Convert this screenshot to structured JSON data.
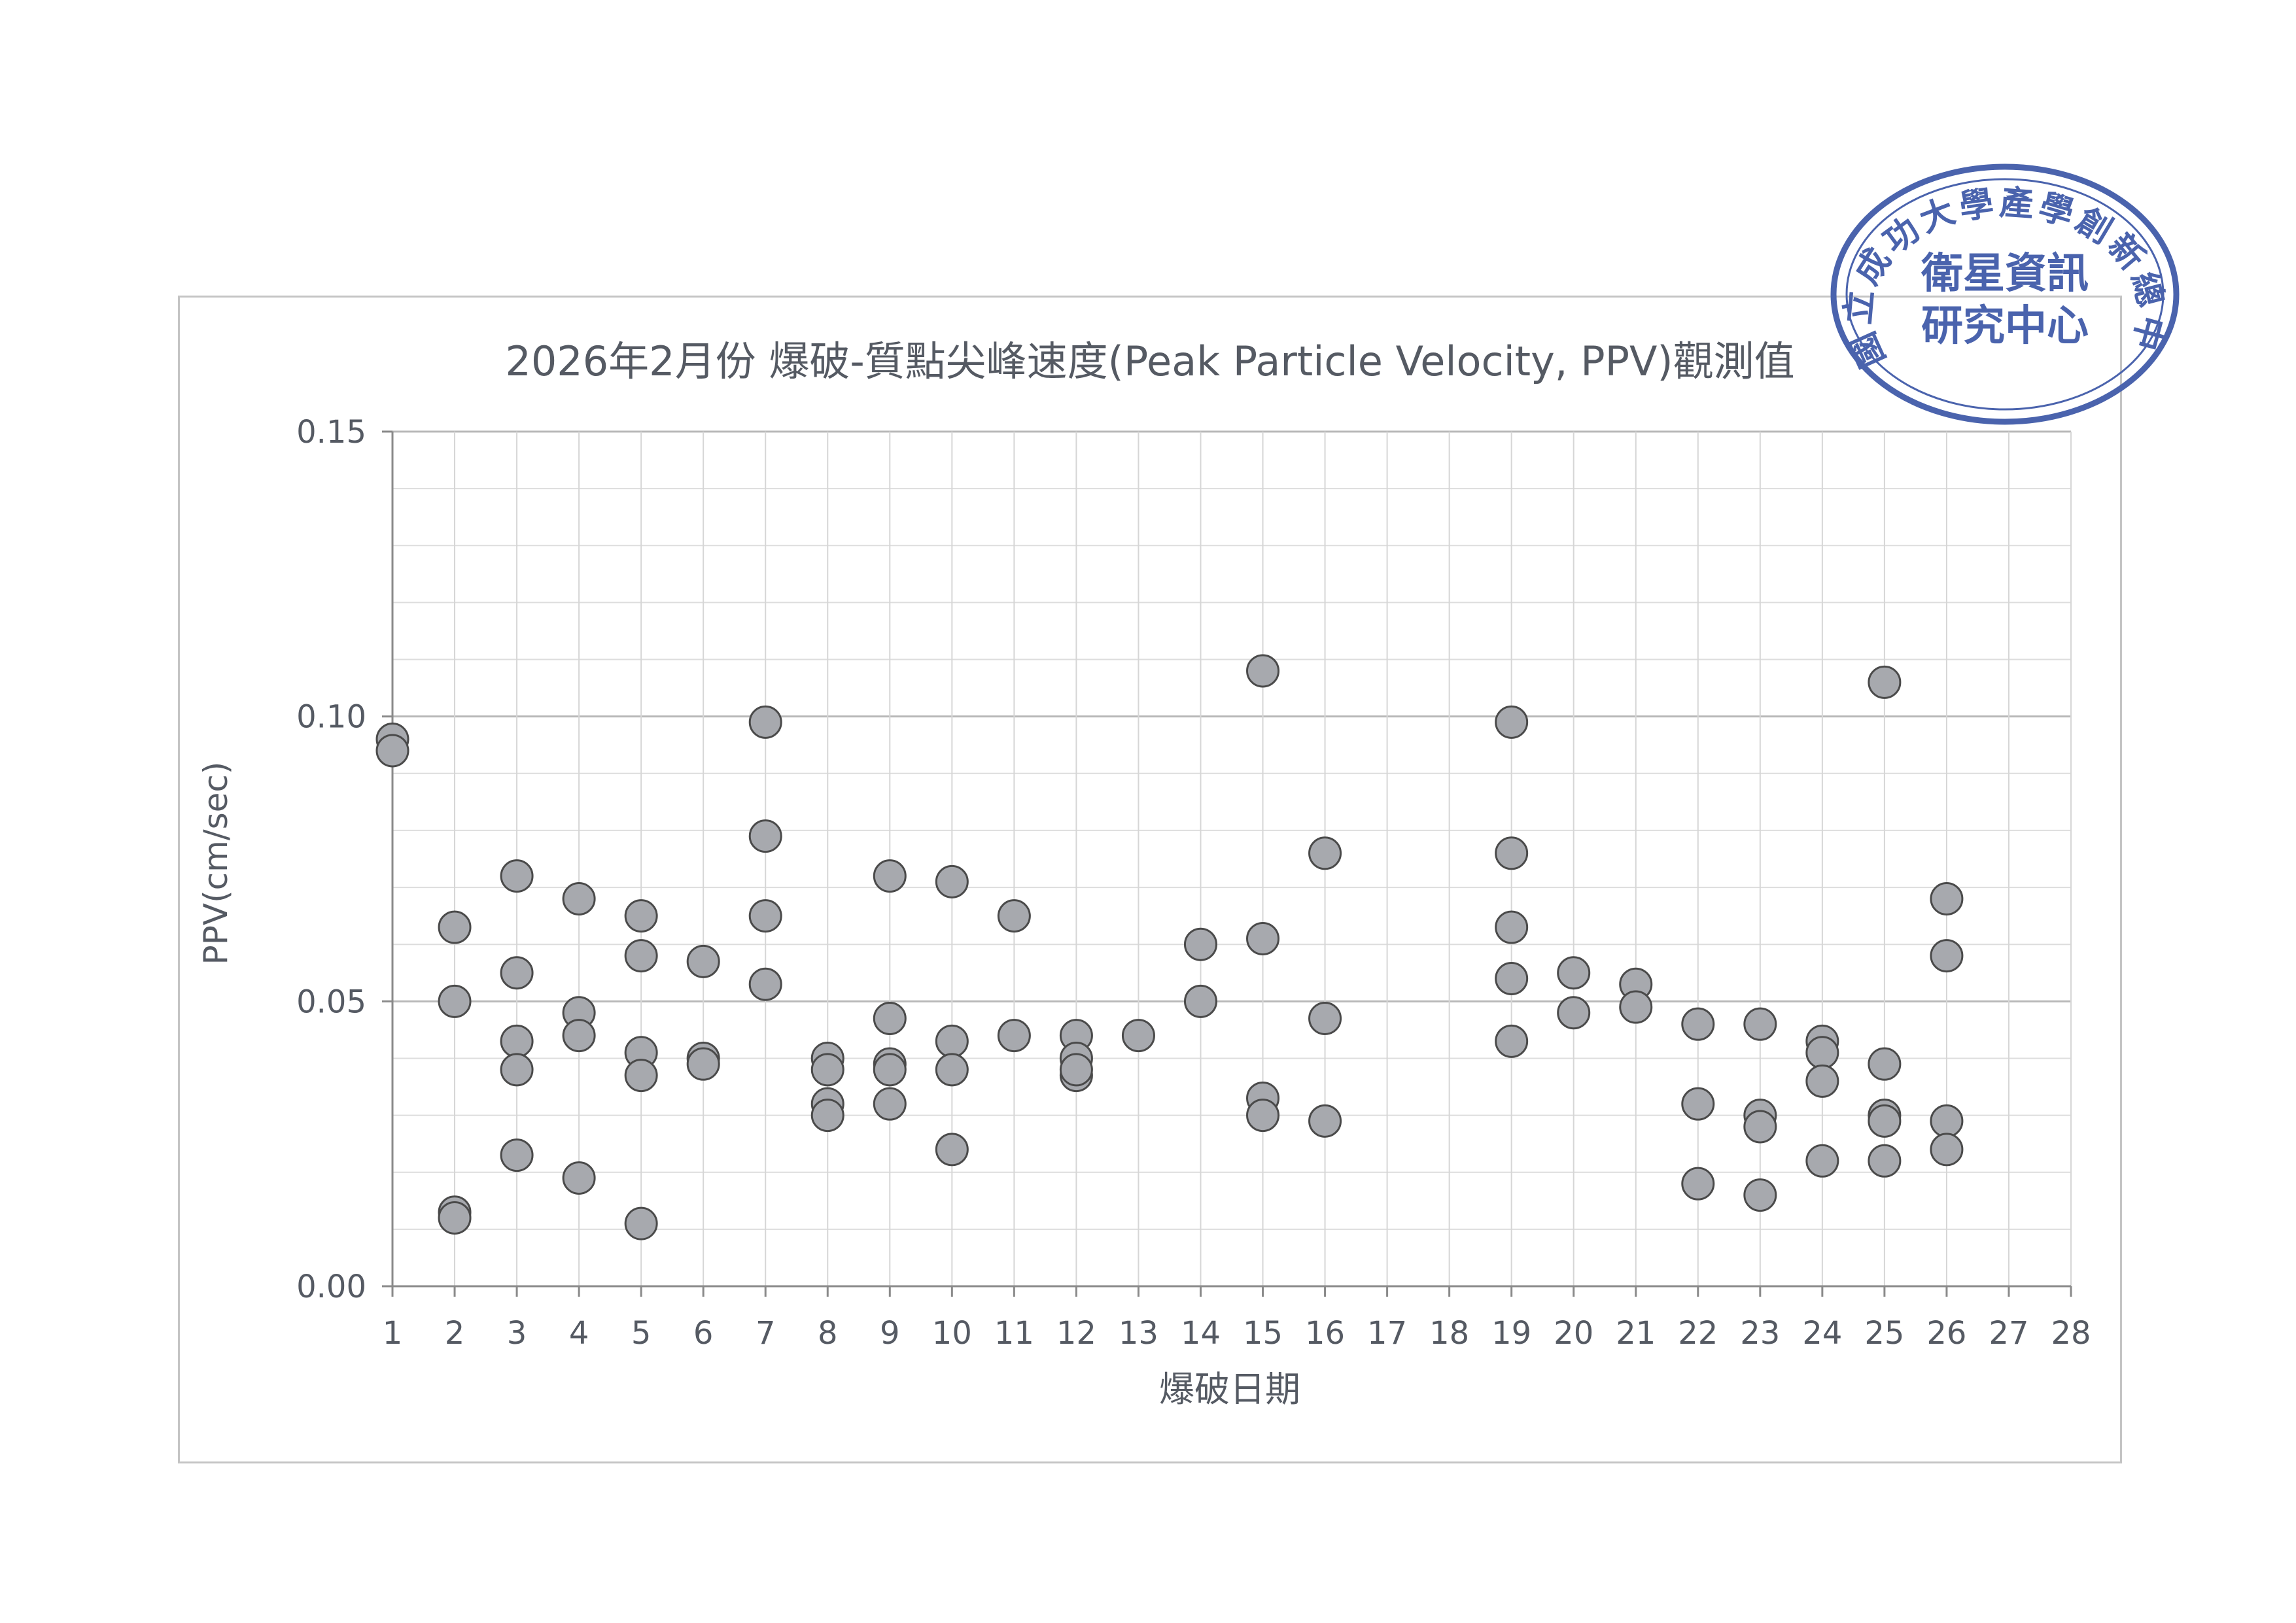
{
  "chart_data": {
    "type": "scatter",
    "title": "2026年2月份 爆破-質點尖峰速度(Peak Particle Velocity, PPV)觀測值",
    "xlabel": "爆破日期",
    "ylabel": "PPV(cm/sec)",
    "xlim": [
      1,
      28
    ],
    "ylim": [
      0,
      0.15
    ],
    "x_ticks": [
      "1",
      "2",
      "3",
      "4",
      "5",
      "6",
      "7",
      "8",
      "9",
      "10",
      "11",
      "12",
      "13",
      "14",
      "15",
      "16",
      "17",
      "18",
      "19",
      "20",
      "21",
      "22",
      "23",
      "24",
      "25",
      "26",
      "27",
      "28"
    ],
    "y_ticks": [
      "0.00",
      "0.05",
      "0.10",
      "0.15"
    ],
    "grid": true,
    "marker_color": "#a7a9ae",
    "marker_edge": "#4a4a4a",
    "points": [
      [
        1,
        0.096
      ],
      [
        1,
        0.094
      ],
      [
        2,
        0.063
      ],
      [
        2,
        0.05
      ],
      [
        2,
        0.013
      ],
      [
        2,
        0.012
      ],
      [
        3,
        0.072
      ],
      [
        3,
        0.055
      ],
      [
        3,
        0.043
      ],
      [
        3,
        0.038
      ],
      [
        3,
        0.023
      ],
      [
        4,
        0.068
      ],
      [
        4,
        0.048
      ],
      [
        4,
        0.044
      ],
      [
        4,
        0.019
      ],
      [
        5,
        0.065
      ],
      [
        5,
        0.058
      ],
      [
        5,
        0.041
      ],
      [
        5,
        0.037
      ],
      [
        5,
        0.011
      ],
      [
        6,
        0.057
      ],
      [
        6,
        0.04
      ],
      [
        6,
        0.039
      ],
      [
        7,
        0.099
      ],
      [
        7,
        0.079
      ],
      [
        7,
        0.065
      ],
      [
        7,
        0.053
      ],
      [
        8,
        0.04
      ],
      [
        8,
        0.038
      ],
      [
        8,
        0.032
      ],
      [
        8,
        0.03
      ],
      [
        9,
        0.072
      ],
      [
        9,
        0.047
      ],
      [
        9,
        0.039
      ],
      [
        9,
        0.038
      ],
      [
        9,
        0.032
      ],
      [
        10,
        0.071
      ],
      [
        10,
        0.043
      ],
      [
        10,
        0.038
      ],
      [
        10,
        0.024
      ],
      [
        11,
        0.065
      ],
      [
        11,
        0.044
      ],
      [
        12,
        0.044
      ],
      [
        12,
        0.04
      ],
      [
        12,
        0.037
      ],
      [
        12,
        0.038
      ],
      [
        13,
        0.044
      ],
      [
        14,
        0.06
      ],
      [
        14,
        0.05
      ],
      [
        15,
        0.108
      ],
      [
        15,
        0.061
      ],
      [
        15,
        0.033
      ],
      [
        15,
        0.03
      ],
      [
        16,
        0.076
      ],
      [
        16,
        0.047
      ],
      [
        16,
        0.029
      ],
      [
        19,
        0.099
      ],
      [
        19,
        0.076
      ],
      [
        19,
        0.063
      ],
      [
        19,
        0.054
      ],
      [
        19,
        0.043
      ],
      [
        20,
        0.055
      ],
      [
        20,
        0.048
      ],
      [
        21,
        0.053
      ],
      [
        21,
        0.049
      ],
      [
        22,
        0.046
      ],
      [
        22,
        0.032
      ],
      [
        22,
        0.018
      ],
      [
        23,
        0.046
      ],
      [
        23,
        0.03
      ],
      [
        23,
        0.028
      ],
      [
        23,
        0.016
      ],
      [
        24,
        0.043
      ],
      [
        24,
        0.041
      ],
      [
        24,
        0.036
      ],
      [
        24,
        0.022
      ],
      [
        25,
        0.106
      ],
      [
        25,
        0.039
      ],
      [
        25,
        0.03
      ],
      [
        25,
        0.029
      ],
      [
        25,
        0.022
      ],
      [
        26,
        0.068
      ],
      [
        26,
        0.058
      ],
      [
        26,
        0.029
      ],
      [
        26,
        0.024
      ]
    ]
  },
  "seal": {
    "outer_text": "國立成功大學產學創新總中心",
    "inner_line1": "衛星資訊",
    "inner_line2": "研究中心",
    "color": "#4a63ad"
  }
}
